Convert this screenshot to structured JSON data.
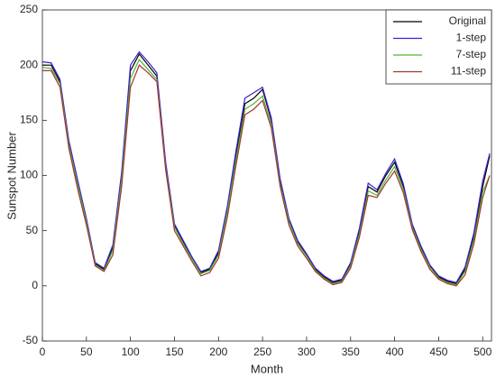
{
  "chart_data": {
    "type": "line",
    "xlabel": "Month",
    "ylabel": "Sunspot Number",
    "x": [
      0,
      10,
      20,
      30,
      40,
      50,
      60,
      70,
      80,
      90,
      100,
      110,
      120,
      130,
      140,
      150,
      160,
      170,
      180,
      190,
      200,
      210,
      220,
      230,
      240,
      250,
      260,
      270,
      280,
      290,
      300,
      310,
      320,
      330,
      340,
      350,
      360,
      370,
      380,
      390,
      400,
      410,
      420,
      430,
      440,
      450,
      460,
      470,
      480,
      490,
      500,
      508
    ],
    "series": [
      {
        "name": "Original",
        "color": "#000000",
        "values": [
          200,
          200,
          185,
          130,
          95,
          60,
          20,
          15,
          35,
          100,
          195,
          210,
          200,
          190,
          110,
          55,
          40,
          25,
          12,
          15,
          30,
          70,
          120,
          165,
          170,
          178,
          150,
          95,
          60,
          40,
          28,
          15,
          8,
          3,
          5,
          20,
          50,
          90,
          85,
          100,
          112,
          90,
          55,
          35,
          18,
          8,
          4,
          2,
          15,
          45,
          90,
          118
        ]
      },
      {
        "name": "1-step",
        "color": "#3b1fd6",
        "values": [
          203,
          202,
          187,
          132,
          96,
          61,
          21,
          16,
          37,
          103,
          200,
          212,
          203,
          193,
          112,
          56,
          41,
          26,
          13,
          16,
          32,
          72,
          123,
          170,
          175,
          180,
          152,
          97,
          61,
          41,
          29,
          16,
          9,
          4,
          6,
          21,
          52,
          93,
          87,
          102,
          115,
          92,
          56,
          36,
          19,
          9,
          5,
          3,
          17,
          48,
          95,
          120
        ]
      },
      {
        "name": "7-step",
        "color": "#4db833",
        "values": [
          198,
          197,
          183,
          128,
          92,
          58,
          19,
          14,
          32,
          96,
          188,
          205,
          196,
          187,
          107,
          53,
          38,
          24,
          11,
          14,
          28,
          67,
          115,
          160,
          165,
          172,
          146,
          92,
          58,
          38,
          27,
          14,
          7,
          2,
          4,
          18,
          47,
          86,
          82,
          96,
          108,
          87,
          53,
          33,
          17,
          7,
          3,
          1,
          13,
          42,
          85,
          100
        ]
      },
      {
        "name": "11-step",
        "color": "#a8322d",
        "values": [
          195,
          195,
          180,
          125,
          88,
          55,
          18,
          13,
          28,
          90,
          180,
          200,
          193,
          185,
          105,
          50,
          36,
          22,
          9,
          12,
          25,
          62,
          110,
          155,
          160,
          168,
          143,
          90,
          55,
          36,
          25,
          13,
          6,
          1,
          3,
          16,
          44,
          82,
          80,
          93,
          104,
          84,
          51,
          31,
          15,
          6,
          2,
          0,
          10,
          38,
          80,
          100
        ]
      }
    ],
    "xlim": [
      0,
      510
    ],
    "xticks": [
      0,
      50,
      100,
      150,
      200,
      250,
      300,
      350,
      400,
      450,
      500
    ],
    "ylim": [
      -50,
      250
    ],
    "yticks": [
      -50,
      0,
      50,
      100,
      150,
      200,
      250
    ],
    "legend": "upper right"
  }
}
